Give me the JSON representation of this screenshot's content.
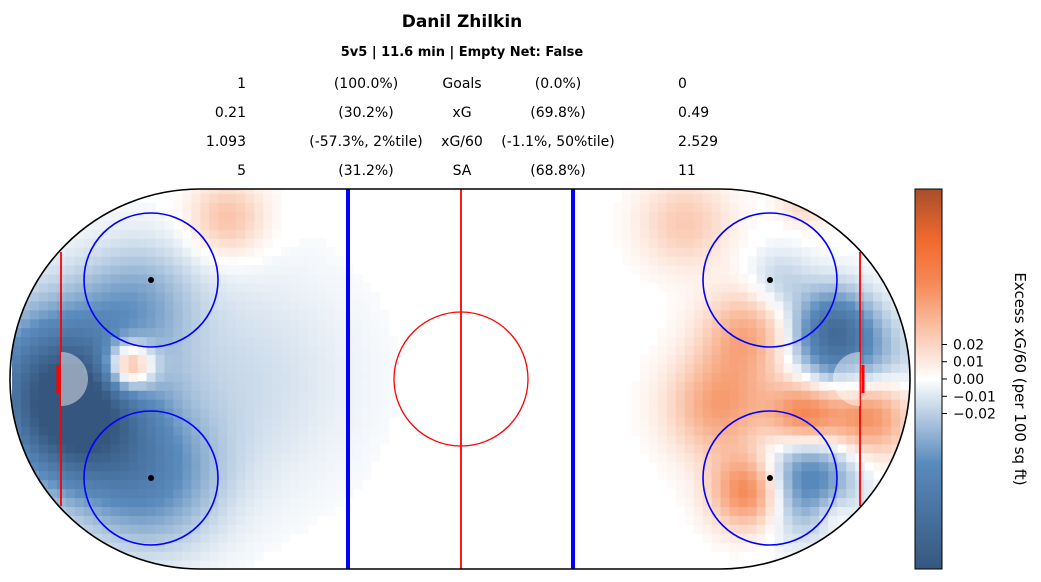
{
  "chart_data": {
    "type": "heatmap",
    "title": "Danil Zhilkin",
    "subtitle": "5v5 | 11.6 min | Empty Net: False",
    "stats": [
      {
        "label": "Goals",
        "left_value": "1",
        "left_pct": "(100.0%)",
        "right_pct": "(0.0%)",
        "right_value": "0"
      },
      {
        "label": "xG",
        "left_value": "0.21",
        "left_pct": "(30.2%)",
        "right_pct": "(69.8%)",
        "right_value": "0.49"
      },
      {
        "label": "xG/60",
        "left_value": "1.093",
        "left_pct": "(-57.3%, 2%tile)",
        "right_pct": "(-1.1%, 50%tile)",
        "right_value": "2.529"
      },
      {
        "label": "SA",
        "left_value": "5",
        "left_pct": "(31.2%)",
        "right_pct": "(68.8%)",
        "right_value": "11"
      }
    ],
    "colorbar": {
      "label": "Excess xG/60 (per 100 sq ft)",
      "ticks": [
        "0.02",
        "0.01",
        "0.00",
        "−0.01",
        "−0.02"
      ],
      "range": [
        -0.11,
        0.11
      ],
      "colors": {
        "low": "#35577f",
        "mid": "#ffffff",
        "high": "#a84e2c",
        "accent": "#f26b2e"
      }
    },
    "hotspots": [
      {
        "x": -89,
        "y": 0,
        "r": 12,
        "value": -0.08
      },
      {
        "x": -86,
        "y": -10,
        "r": 10,
        "value": -0.07
      },
      {
        "x": -70,
        "y": -22,
        "r": 11,
        "value": -0.05
      },
      {
        "x": -72,
        "y": 18,
        "r": 9,
        "value": -0.03
      },
      {
        "x": -74,
        "y": 3,
        "r": 4,
        "value": 0.09
      },
      {
        "x": -52,
        "y": 36,
        "r": 6,
        "value": 0.03
      },
      {
        "x": -50,
        "y": 0,
        "r": 18,
        "value": -0.015
      },
      {
        "x": 58,
        "y": -6,
        "r": 8,
        "value": 0.045
      },
      {
        "x": 64,
        "y": 10,
        "r": 7,
        "value": 0.04
      },
      {
        "x": 77,
        "y": -8,
        "r": 6,
        "value": 0.085
      },
      {
        "x": 90,
        "y": -7,
        "r": 7,
        "value": 0.095
      },
      {
        "x": 87,
        "y": 0,
        "r": 9,
        "value": -0.07
      },
      {
        "x": 78,
        "y": -18,
        "r": 8,
        "value": -0.05
      },
      {
        "x": 74,
        "y": -26,
        "r": 7,
        "value": -0.03
      },
      {
        "x": 83,
        "y": 12,
        "r": 6,
        "value": -0.06
      },
      {
        "x": 71,
        "y": 22,
        "r": 5,
        "value": -0.02
      },
      {
        "x": 65,
        "y": -25,
        "r": 6,
        "value": 0.07
      },
      {
        "x": 50,
        "y": 35,
        "r": 7,
        "value": 0.025
      },
      {
        "x": 77,
        "y": 40,
        "r": 4,
        "value": 0.02
      },
      {
        "x": 83,
        "y": -30,
        "r": 3,
        "value": 0.015
      }
    ]
  }
}
